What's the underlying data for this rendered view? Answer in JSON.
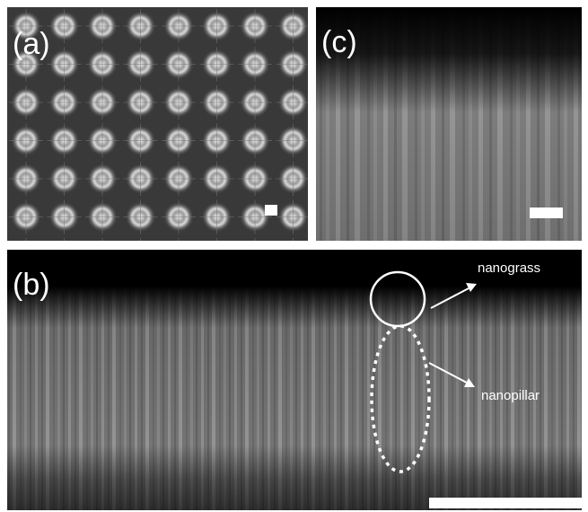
{
  "panels": [
    {
      "label": "(a)"
    },
    {
      "label": "(c)"
    },
    {
      "label": "(b)"
    }
  ],
  "annotations": [
    "nanograss",
    "nanopillar"
  ]
}
